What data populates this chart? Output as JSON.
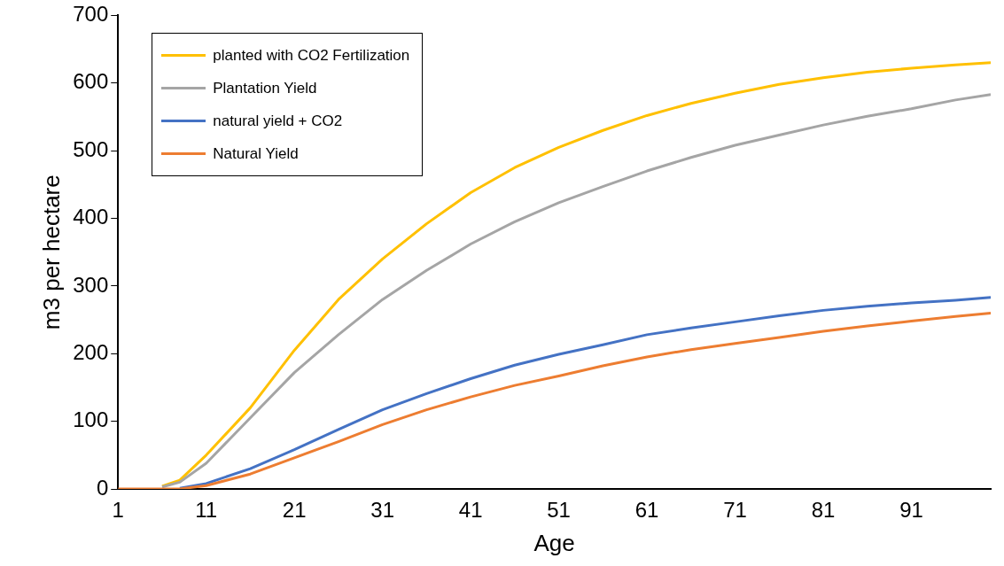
{
  "chart_data": {
    "type": "line",
    "xlabel": "Age",
    "ylabel": "m3 per hectare",
    "xlim": [
      1,
      100
    ],
    "xticks": [
      1,
      11,
      21,
      31,
      41,
      51,
      61,
      71,
      81,
      91
    ],
    "ylim": [
      0,
      700
    ],
    "yticks": [
      0,
      100,
      200,
      300,
      400,
      500,
      600,
      700
    ],
    "grid": false,
    "legend": "top left",
    "marker": "none",
    "line_style": "solid",
    "x": [
      1,
      4,
      6,
      8,
      11,
      16,
      21,
      26,
      31,
      36,
      41,
      46,
      51,
      56,
      61,
      66,
      71,
      76,
      81,
      86,
      91,
      96,
      100
    ],
    "series": [
      {
        "name": "planted with CO2 Fertilization",
        "color": "#ffc000",
        "values": [
          null,
          null,
          4,
          13,
          50,
          120,
          205,
          280,
          340,
          392,
          438,
          475,
          505,
          530,
          552,
          570,
          585,
          598,
          608,
          616,
          622,
          627,
          630
        ]
      },
      {
        "name": "Plantation Yield",
        "color": "#a5a5a5",
        "values": [
          null,
          null,
          3,
          10,
          38,
          105,
          172,
          228,
          280,
          323,
          362,
          395,
          423,
          447,
          470,
          490,
          508,
          523,
          538,
          551,
          562,
          575,
          583
        ]
      },
      {
        "name": "natural yield + CO2",
        "color": "#4472c4",
        "values": [
          null,
          null,
          null,
          1,
          8,
          30,
          58,
          88,
          117,
          141,
          163,
          183,
          199,
          213,
          228,
          238,
          247,
          256,
          264,
          270,
          275,
          279,
          283
        ]
      },
      {
        "name": "Natural Yield",
        "color": "#ed7d31",
        "values": [
          0,
          0,
          0,
          0,
          5,
          22,
          46,
          70,
          95,
          117,
          136,
          153,
          167,
          182,
          195,
          206,
          215,
          224,
          233,
          241,
          248,
          255,
          260
        ]
      }
    ]
  }
}
